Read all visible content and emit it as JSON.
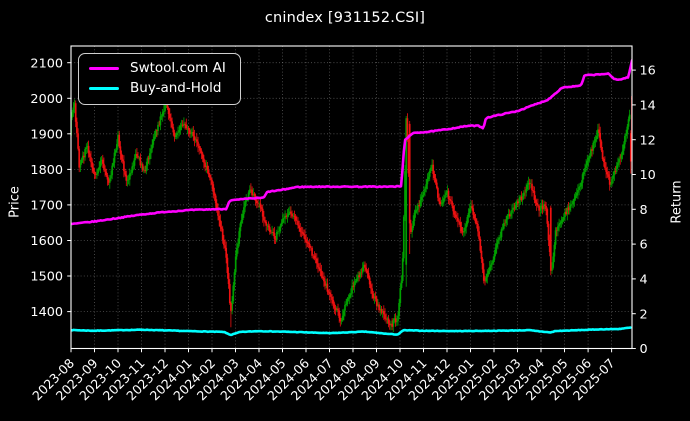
{
  "figure": {
    "title": "cnindex [931152.CSI]",
    "background": "#000000",
    "text_color": "#ffffff"
  },
  "legend": {
    "items": [
      {
        "label": "Swtool.com AI",
        "color": "#ff00ff"
      },
      {
        "label": "Buy-and-Hold",
        "color": "#00ffff"
      }
    ]
  },
  "chart_data": {
    "type": "candlestick+line",
    "title": "cnindex [931152.CSI]",
    "x_tick_labels": [
      "2023-08",
      "2023-09",
      "2023-10",
      "2023-11",
      "2023-12",
      "2024-01",
      "2024-02",
      "2024-03",
      "2024-04",
      "2024-05",
      "2024-06",
      "2024-07",
      "2024-08",
      "2024-09",
      "2024-10",
      "2024-11",
      "2024-12",
      "2025-01",
      "2025-02",
      "2025-03",
      "2025-04",
      "2025-05",
      "2025-06",
      "2025-07"
    ],
    "x_months_span": 23.87,
    "left_axis": {
      "label": "Price",
      "ticks": [
        1400,
        1500,
        1600,
        1700,
        1800,
        1900,
        2000,
        2100
      ]
    },
    "right_axis": {
      "label": "Return",
      "ticks": [
        0,
        2,
        4,
        6,
        8,
        10,
        12,
        14,
        16
      ]
    },
    "grid": true,
    "candle_colors": {
      "up": "#00a000",
      "down": "#ee1111"
    },
    "price_path": {
      "t_months": [
        0,
        0.15,
        0.35,
        0.7,
        1.0,
        1.3,
        1.6,
        2.0,
        2.35,
        2.8,
        3.1,
        3.6,
        4.05,
        4.4,
        4.75,
        5.2,
        5.6,
        6.0,
        6.3,
        6.6,
        6.8,
        7.0,
        7.3,
        7.6,
        8.0,
        8.35,
        8.7,
        9.0,
        9.3,
        9.7,
        10.0,
        10.4,
        10.8,
        11.2,
        11.5,
        11.8,
        12.2,
        12.5,
        12.8,
        13.2,
        13.6,
        13.9,
        14.1,
        14.28,
        14.45,
        14.65,
        15.0,
        15.35,
        15.7,
        16.0,
        16.35,
        16.7,
        17.0,
        17.3,
        17.6,
        18.0,
        18.4,
        18.8,
        19.2,
        19.5,
        19.85,
        20.2,
        20.45,
        20.6,
        20.9,
        21.3,
        21.7,
        22.1,
        22.45,
        22.7,
        22.95,
        23.2,
        23.45,
        23.7,
        23.87
      ],
      "price": [
        1950,
        1985,
        1810,
        1865,
        1780,
        1825,
        1755,
        1890,
        1760,
        1845,
        1790,
        1905,
        1985,
        1890,
        1925,
        1895,
        1830,
        1760,
        1660,
        1560,
        1390,
        1555,
        1680,
        1745,
        1700,
        1640,
        1605,
        1660,
        1685,
        1640,
        1600,
        1545,
        1480,
        1420,
        1375,
        1445,
        1495,
        1530,
        1450,
        1400,
        1360,
        1385,
        1520,
        1950,
        1620,
        1685,
        1725,
        1815,
        1700,
        1735,
        1675,
        1620,
        1700,
        1640,
        1475,
        1560,
        1645,
        1685,
        1725,
        1770,
        1690,
        1700,
        1505,
        1620,
        1660,
        1705,
        1765,
        1845,
        1910,
        1800,
        1760,
        1800,
        1850,
        1925,
        2010
      ],
      "low_extreme": 1356,
      "high_extreme": 2012
    },
    "series": [
      {
        "name": "Swtool.com AI",
        "axis": "right",
        "color": "#ff00ff",
        "t_months": [
          0,
          1,
          2,
          3,
          4,
          5,
          6,
          6.6,
          6.75,
          7.6,
          8.2,
          8.35,
          9.0,
          9.6,
          10.5,
          12,
          13.5,
          14.05,
          14.2,
          14.6,
          15.2,
          16.0,
          16.9,
          17.35,
          17.55,
          17.65,
          18.3,
          19.0,
          19.7,
          20.3,
          20.9,
          21.3,
          21.7,
          21.85,
          22.5,
          22.85,
          23.1,
          23.35,
          23.6,
          23.72,
          23.87
        ],
        "values": [
          7.15,
          7.3,
          7.5,
          7.7,
          7.85,
          7.95,
          8.0,
          8.02,
          8.5,
          8.62,
          8.66,
          9.0,
          9.12,
          9.28,
          9.3,
          9.3,
          9.3,
          9.32,
          12.0,
          12.4,
          12.45,
          12.6,
          12.8,
          12.8,
          12.65,
          13.25,
          13.45,
          13.65,
          14.0,
          14.3,
          15.0,
          15.05,
          15.1,
          15.7,
          15.75,
          15.8,
          15.5,
          15.45,
          15.55,
          15.6,
          16.55
        ]
      },
      {
        "name": "Buy-and-Hold",
        "axis": "right",
        "color": "#00ffff",
        "t_months": [
          0,
          1,
          3,
          5,
          6.5,
          6.8,
          7.2,
          8,
          9.5,
          11,
          12.5,
          13.4,
          13.9,
          14.15,
          15,
          16.5,
          18,
          19.5,
          20.4,
          20.6,
          21.5,
          22.5,
          23.3,
          23.8
        ],
        "values": [
          1.06,
          1.02,
          1.08,
          1.0,
          0.95,
          0.78,
          0.95,
          1.0,
          0.95,
          0.88,
          0.97,
          0.85,
          0.8,
          1.05,
          1.02,
          1.0,
          1.02,
          1.05,
          0.92,
          1.0,
          1.05,
          1.1,
          1.12,
          1.2
        ]
      }
    ]
  }
}
